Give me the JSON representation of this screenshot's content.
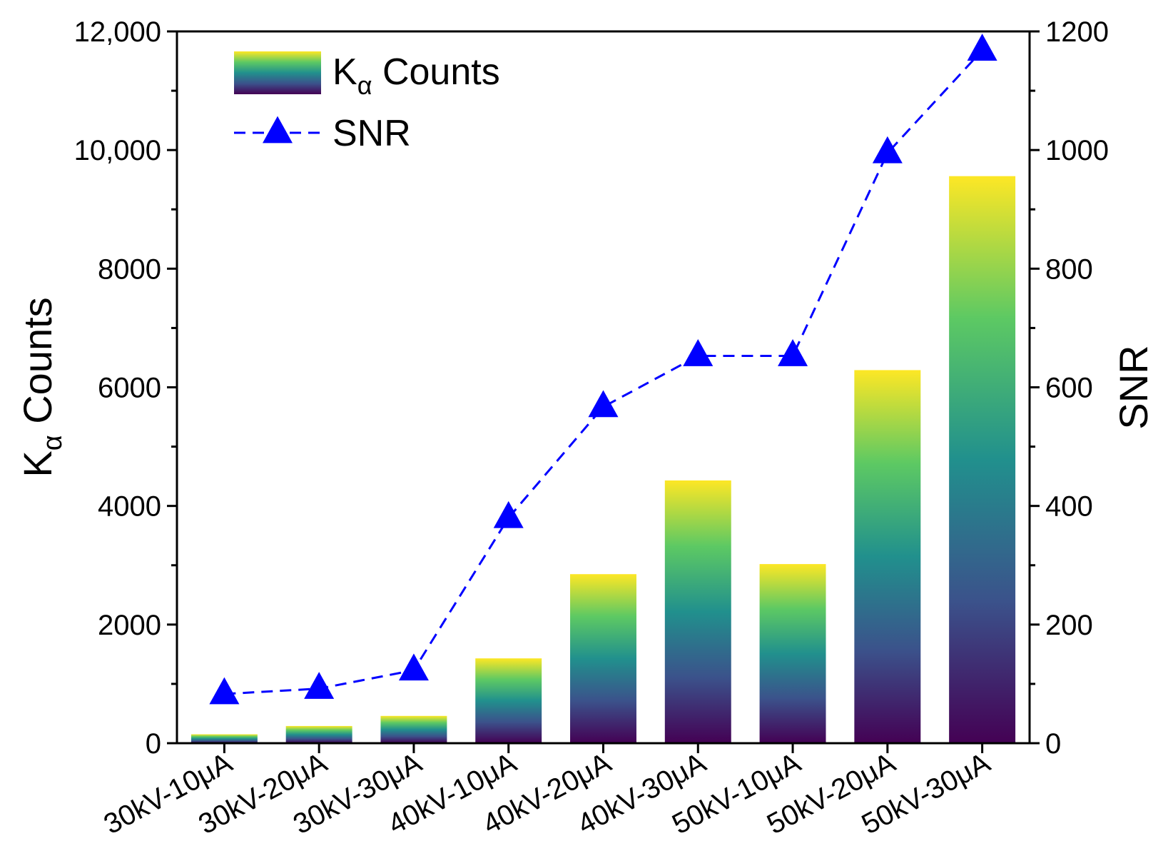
{
  "chart_data": {
    "type": "bar",
    "categories": [
      "30kV-10μA",
      "30kV-20μA",
      "30kV-30μA",
      "40kV-10μA",
      "40kV-20μA",
      "40kV-30μA",
      "50kV-10μA",
      "50kV-20μA",
      "50kV-30μA"
    ],
    "series": [
      {
        "name": "Kα Counts",
        "name_main": "K",
        "name_sub": "α",
        "name_rest": " Counts",
        "type": "bar",
        "axis": "left",
        "values": [
          150,
          290,
          460,
          1430,
          2850,
          4430,
          3020,
          6290,
          9560
        ]
      },
      {
        "name": "SNR",
        "type": "line",
        "axis": "right",
        "marker": "triangle",
        "line_style": "dashed",
        "color": "#0000ff",
        "values": [
          83,
          92,
          123,
          380,
          567,
          653,
          653,
          995,
          1168
        ]
      }
    ],
    "left_axis": {
      "label_main": "K",
      "label_sub": "α",
      "label_rest": " Counts",
      "ylim": [
        0,
        12000
      ],
      "ticks": [
        {
          "value": 0,
          "label": "0"
        },
        {
          "value": 2000,
          "label": "2000"
        },
        {
          "value": 4000,
          "label": "4000"
        },
        {
          "value": 6000,
          "label": "6000"
        },
        {
          "value": 8000,
          "label": "8000"
        },
        {
          "value": 10000,
          "label": "10,000"
        },
        {
          "value": 12000,
          "label": "12,000"
        }
      ]
    },
    "right_axis": {
      "label": "SNR",
      "ylim": [
        0,
        1200
      ],
      "ticks": [
        {
          "value": 0,
          "label": "0"
        },
        {
          "value": 200,
          "label": "200"
        },
        {
          "value": 400,
          "label": "400"
        },
        {
          "value": 600,
          "label": "600"
        },
        {
          "value": 800,
          "label": "800"
        },
        {
          "value": 1000,
          "label": "1000"
        },
        {
          "value": 1200,
          "label": "1200"
        }
      ]
    },
    "bar_colormap": [
      "#440154",
      "#3b528b",
      "#21908d",
      "#5dc963",
      "#fde725"
    ],
    "grid": false,
    "legend_position": "top-left"
  }
}
